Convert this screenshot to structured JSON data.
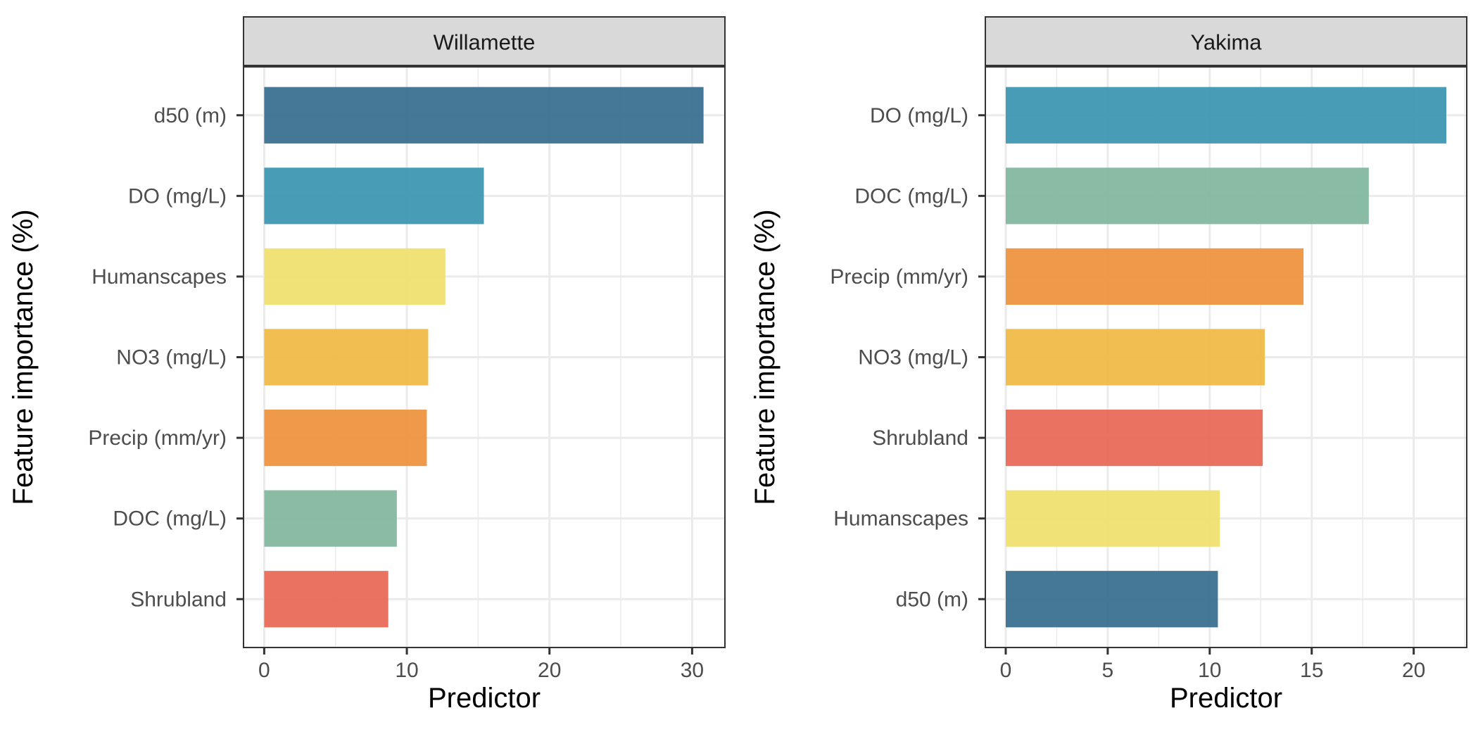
{
  "chart_data": [
    {
      "type": "bar",
      "orientation": "horizontal",
      "panel_title": "Willamette",
      "xlabel": "Predictor",
      "ylabel": "Feature importance (%)",
      "xlim": [
        -1.45,
        32.3
      ],
      "xticks": [
        0,
        10,
        20,
        30
      ],
      "grid": true,
      "categories": [
        "d50 (m)",
        "DO (mg/L)",
        "Humanscapes",
        "NO3 (mg/L)",
        "Precip (mm/yr)",
        "DOC (mg/L)",
        "Shrubland"
      ],
      "values": [
        30.8,
        15.4,
        12.7,
        11.5,
        11.4,
        9.3,
        8.7
      ],
      "colors": [
        "#3b7090",
        "#3e97b2",
        "#f0e070",
        "#f0ba48",
        "#ee9540",
        "#84b8a0",
        "#e86a58"
      ]
    },
    {
      "type": "bar",
      "orientation": "horizontal",
      "panel_title": "Yakima",
      "xlabel": "Predictor",
      "ylabel": "Feature importance (%)",
      "xlim": [
        -1.0,
        22.6
      ],
      "xticks": [
        0,
        5,
        10,
        15,
        20
      ],
      "grid": true,
      "categories": [
        "DO (mg/L)",
        "DOC (mg/L)",
        "Precip (mm/yr)",
        "NO3 (mg/L)",
        "Shrubland",
        "Humanscapes",
        "d50 (m)"
      ],
      "values": [
        21.6,
        17.8,
        14.6,
        12.7,
        12.6,
        10.5,
        10.4
      ],
      "colors": [
        "#3e97b2",
        "#84b8a0",
        "#ee9540",
        "#f0ba48",
        "#e86a58",
        "#f0e070",
        "#3b7090"
      ]
    }
  ]
}
